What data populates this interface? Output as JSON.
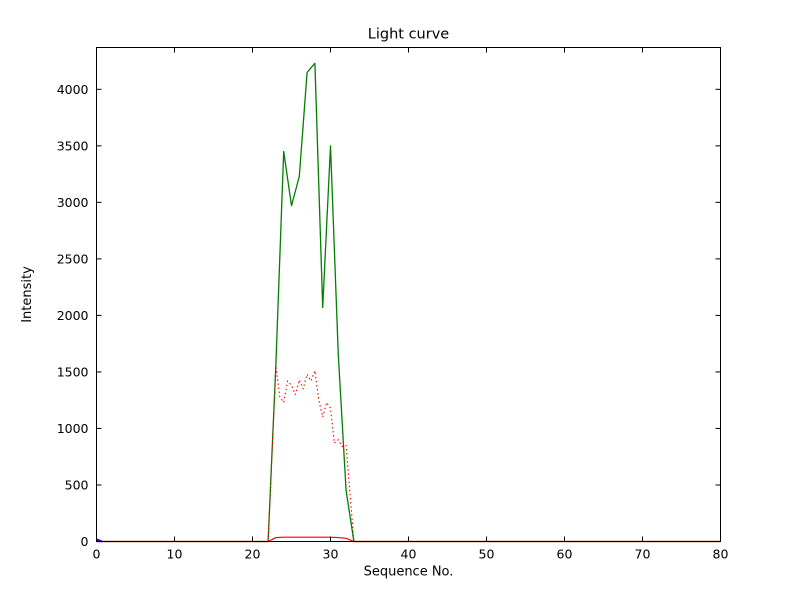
{
  "figure": {
    "background": "#ffffff"
  },
  "chart_data": {
    "type": "line",
    "title": "Light curve",
    "xlabel": "Sequence No.",
    "ylabel": "Intensity",
    "xlim": [
      0,
      80
    ],
    "ylim": [
      0,
      4370
    ],
    "xticks": [
      0,
      10,
      20,
      30,
      40,
      50,
      60,
      70,
      80
    ],
    "yticks": [
      0,
      500,
      1000,
      1500,
      2000,
      2500,
      3000,
      3500,
      4000
    ],
    "grid": false,
    "legend": "none",
    "axis_color": "#000000",
    "series": [
      {
        "name": "green-solid-line",
        "color": "#007f00",
        "style": "solid",
        "width": 1.3,
        "points": [
          [
            0,
            0
          ],
          [
            5,
            0
          ],
          [
            10,
            0
          ],
          [
            15,
            0
          ],
          [
            20,
            0
          ],
          [
            22,
            0
          ],
          [
            23,
            1570
          ],
          [
            24,
            3450
          ],
          [
            25,
            2970
          ],
          [
            26,
            3230
          ],
          [
            27,
            4150
          ],
          [
            28,
            4230
          ],
          [
            29,
            2070
          ],
          [
            30,
            3500
          ],
          [
            31,
            1650
          ],
          [
            32,
            450
          ],
          [
            33,
            0
          ],
          [
            40,
            0
          ],
          [
            50,
            0
          ],
          [
            60,
            0
          ],
          [
            70,
            0
          ],
          [
            72,
            0
          ],
          [
            80,
            0
          ]
        ]
      },
      {
        "name": "red-dotted-line",
        "color": "#ff0000",
        "style": "dotted",
        "width": 1.1,
        "points": [
          [
            22,
            0
          ],
          [
            23,
            1550
          ],
          [
            23.5,
            1280
          ],
          [
            24,
            1230
          ],
          [
            24.5,
            1420
          ],
          [
            25,
            1380
          ],
          [
            25.5,
            1300
          ],
          [
            26,
            1430
          ],
          [
            26.5,
            1350
          ],
          [
            27,
            1480
          ],
          [
            27.5,
            1420
          ],
          [
            28,
            1510
          ],
          [
            28.5,
            1250
          ],
          [
            29,
            1100
          ],
          [
            29.5,
            1230
          ],
          [
            30,
            1180
          ],
          [
            30.5,
            870
          ],
          [
            31,
            900
          ],
          [
            31.5,
            840
          ],
          [
            32,
            850
          ],
          [
            33,
            0
          ]
        ]
      },
      {
        "name": "red-solid-line",
        "color": "#ff0000",
        "style": "solid",
        "width": 1.2,
        "points": [
          [
            0,
            0
          ],
          [
            10,
            0
          ],
          [
            20,
            0
          ],
          [
            22,
            0
          ],
          [
            23,
            35
          ],
          [
            24,
            38
          ],
          [
            25,
            38
          ],
          [
            26,
            38
          ],
          [
            27,
            38
          ],
          [
            28,
            38
          ],
          [
            29,
            38
          ],
          [
            30,
            38
          ],
          [
            31,
            35
          ],
          [
            32,
            28
          ],
          [
            33,
            0
          ],
          [
            40,
            0
          ],
          [
            50,
            0
          ],
          [
            60,
            0
          ],
          [
            70,
            0
          ],
          [
            80,
            0
          ]
        ]
      },
      {
        "name": "blue-solid-line",
        "color": "#0000ff",
        "style": "solid",
        "width": 2,
        "points": [
          [
            0,
            18
          ],
          [
            0.7,
            0
          ]
        ]
      }
    ]
  }
}
